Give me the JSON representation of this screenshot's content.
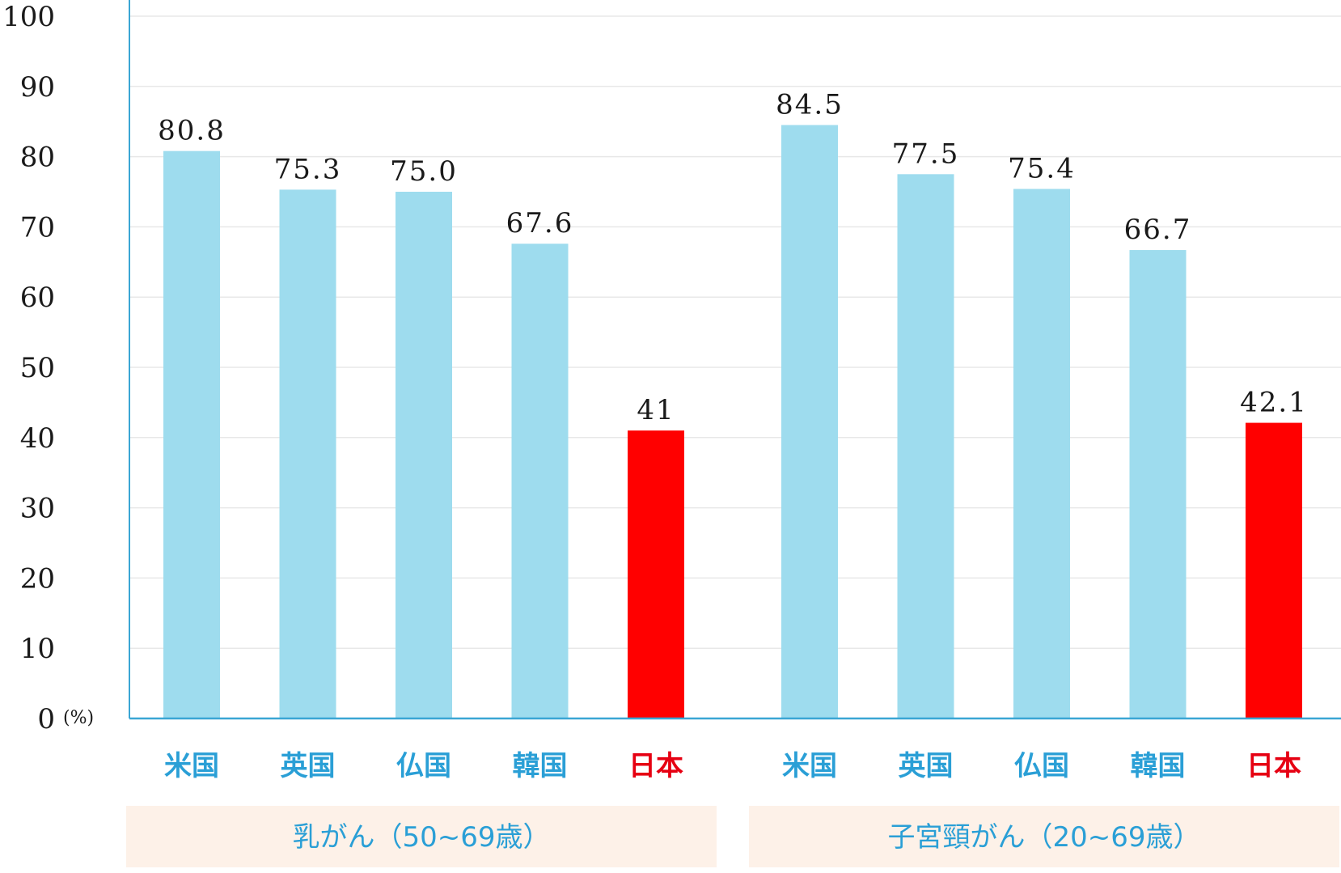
{
  "chart_data": {
    "type": "bar",
    "ylim": [
      0,
      100
    ],
    "yticks": [
      0,
      10,
      20,
      30,
      40,
      50,
      60,
      70,
      80,
      90,
      100
    ],
    "yunit": "(%)",
    "grid": true,
    "colors": {
      "bar": "#9edcee",
      "highlight_bar": "#ff0000",
      "axis": "#3aa6d4",
      "category_text": "#2a9fd6",
      "highlight_text": "#e60012",
      "group_band": "#fdf1e8",
      "group_text": "#2a9fd6",
      "gridline": "#e8e8e8"
    },
    "groups": [
      {
        "label": "乳がん（50~69歳）",
        "categories": [
          "米国",
          "英国",
          "仏国",
          "韓国",
          "日本"
        ],
        "values": [
          80.8,
          75.3,
          75.0,
          67.6,
          41
        ],
        "value_labels": [
          "80.8",
          "75.3",
          "75.0",
          "67.6",
          "41"
        ],
        "highlight": [
          false,
          false,
          false,
          false,
          true
        ]
      },
      {
        "label": "子宮頸がん（20~69歳）",
        "categories": [
          "米国",
          "英国",
          "仏国",
          "韓国",
          "日本"
        ],
        "values": [
          84.5,
          77.5,
          75.4,
          66.7,
          42.1
        ],
        "value_labels": [
          "84.5",
          "77.5",
          "75.4",
          "66.7",
          "42.1"
        ],
        "highlight": [
          false,
          false,
          false,
          false,
          true
        ]
      }
    ]
  }
}
